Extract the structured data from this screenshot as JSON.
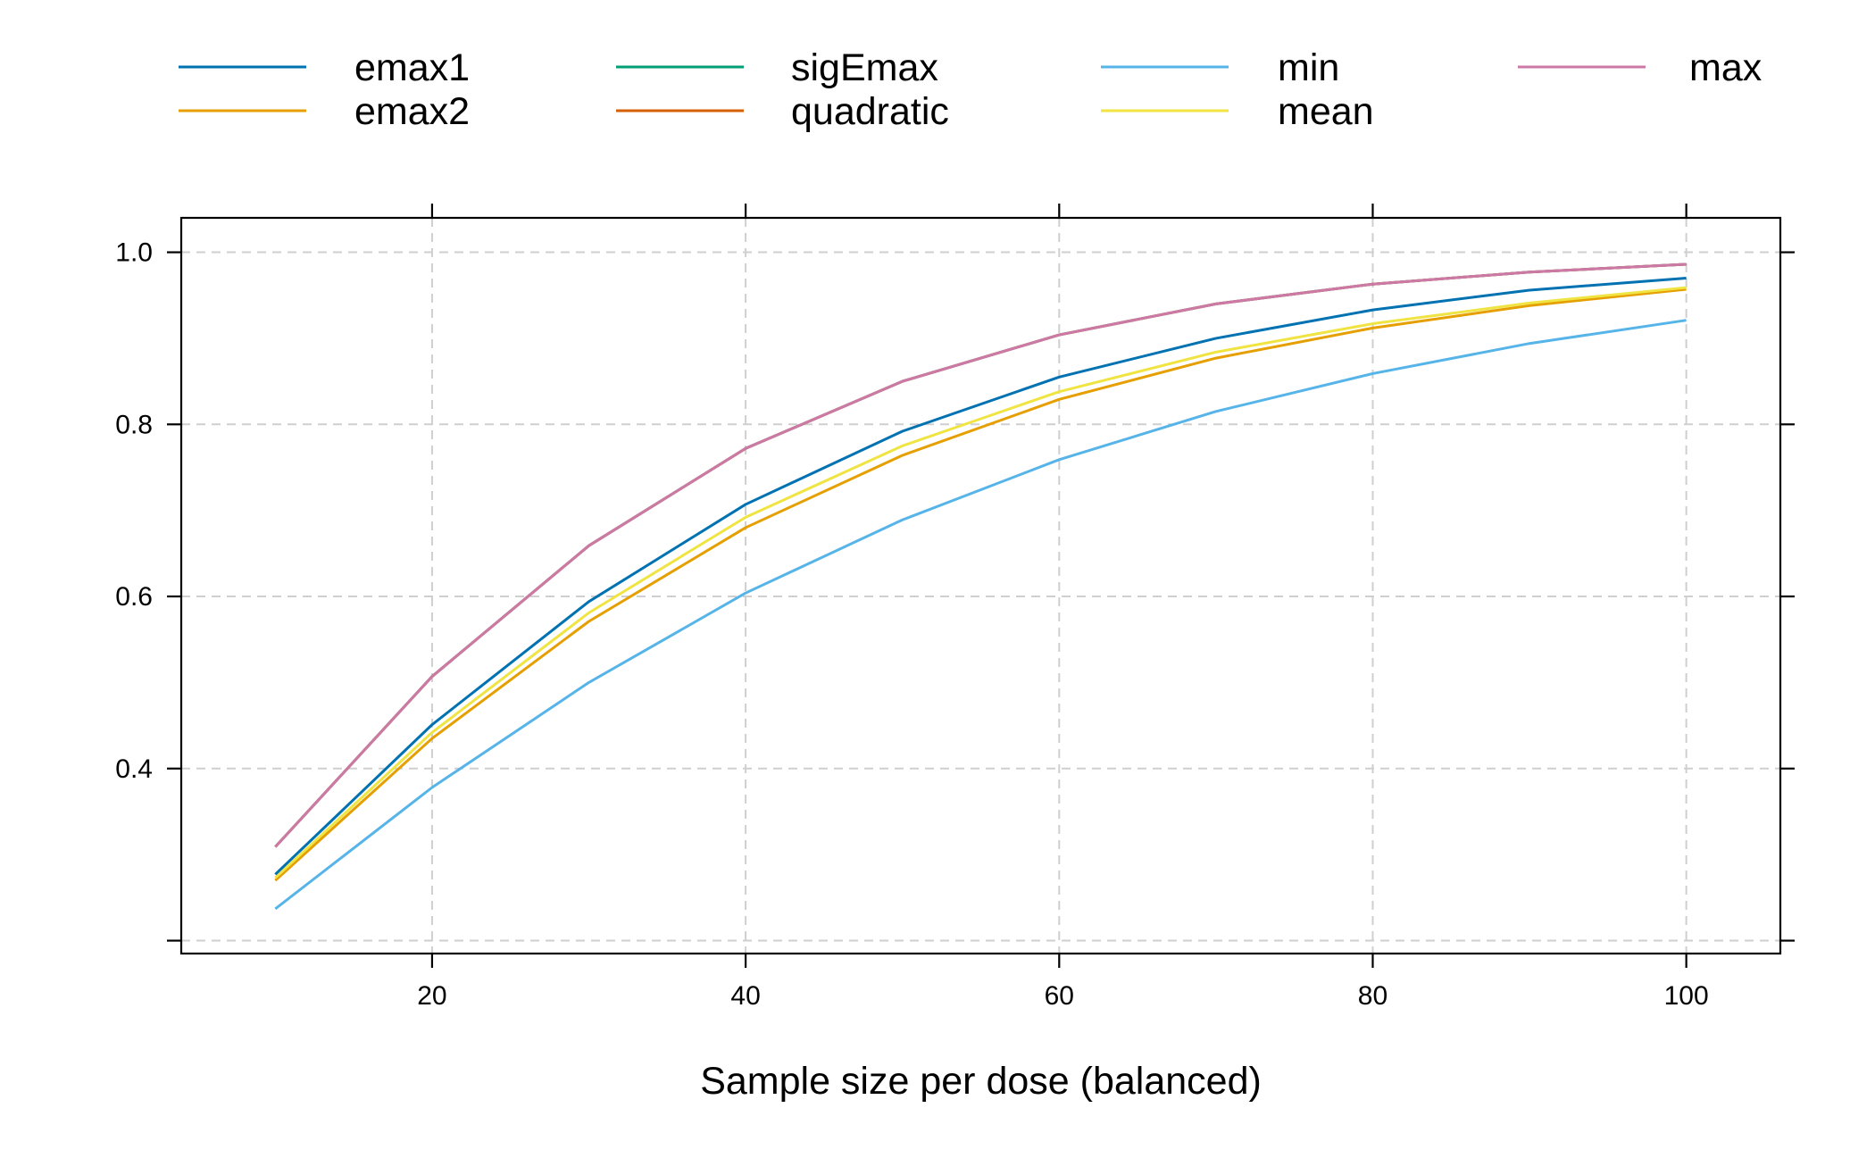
{
  "chart_data": {
    "type": "line",
    "title": "",
    "xlabel": "Sample size per dose (balanced)",
    "ylabel": "",
    "xlim": [
      4,
      106
    ],
    "ylim": [
      0.185,
      1.04
    ],
    "x_ticks": [
      20,
      40,
      60,
      80,
      100
    ],
    "x_tick_labels": [
      "20",
      "40",
      "60",
      "80",
      "100"
    ],
    "y_ticks": [
      0.2,
      0.4,
      0.6,
      0.8,
      1.0
    ],
    "y_tick_labels": [
      "",
      "0.4",
      "0.6",
      "0.8",
      "1.0"
    ],
    "grid": true,
    "legend_position": "top",
    "x": [
      10,
      20,
      30,
      40,
      50,
      60,
      70,
      80,
      90,
      100
    ],
    "series": [
      {
        "name": "emax1",
        "color": "#0072B2",
        "values": [
          0.277,
          0.451,
          0.594,
          0.707,
          0.792,
          0.855,
          0.9,
          0.933,
          0.956,
          0.97
        ]
      },
      {
        "name": "emax2",
        "color": "#E69F00",
        "values": [
          0.27,
          0.435,
          0.571,
          0.68,
          0.764,
          0.829,
          0.877,
          0.912,
          0.938,
          0.957
        ]
      },
      {
        "name": "sigEmax",
        "color": "#009E73",
        "values": [
          0.309,
          0.507,
          0.659,
          0.772,
          0.85,
          0.904,
          0.94,
          0.963,
          0.977,
          0.986
        ]
      },
      {
        "name": "quadratic",
        "color": "#D55E00",
        "values": [
          0.309,
          0.507,
          0.659,
          0.772,
          0.85,
          0.904,
          0.94,
          0.963,
          0.977,
          0.986
        ]
      },
      {
        "name": "min",
        "color": "#56B4E9",
        "values": [
          0.237,
          0.378,
          0.5,
          0.604,
          0.689,
          0.759,
          0.815,
          0.859,
          0.894,
          0.921
        ]
      },
      {
        "name": "mean",
        "color": "#F0E442",
        "values": [
          0.273,
          0.442,
          0.581,
          0.692,
          0.775,
          0.838,
          0.884,
          0.917,
          0.941,
          0.959
        ]
      },
      {
        "name": "max",
        "color": "#CC79A7",
        "values": [
          0.309,
          0.507,
          0.659,
          0.772,
          0.85,
          0.904,
          0.94,
          0.963,
          0.977,
          0.986
        ]
      }
    ]
  }
}
